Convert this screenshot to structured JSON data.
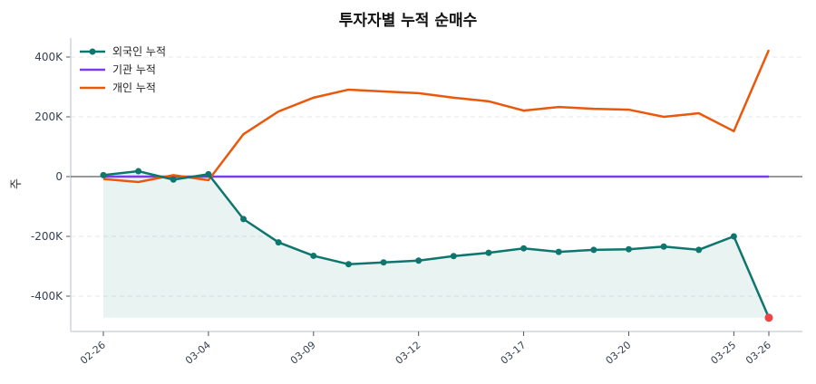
{
  "chart_data": {
    "type": "line",
    "title": "투자자별 누적 순매수",
    "ylabel": "주",
    "xlabel": "",
    "ylim": [
      -500000,
      470000
    ],
    "yticks": [
      -400000,
      -200000,
      0,
      200000,
      400000
    ],
    "ytick_labels": [
      "-400K",
      "-200K",
      "0",
      "200K",
      "400K"
    ],
    "x": [
      "02-26",
      "02-27",
      "02-28",
      "03-04",
      "03-05",
      "03-06",
      "03-09",
      "03-10",
      "03-11",
      "03-12",
      "03-13",
      "03-16",
      "03-17",
      "03-18",
      "03-19",
      "03-20",
      "03-23",
      "03-24",
      "03-25",
      "03-26"
    ],
    "xtick_indices": [
      0,
      3,
      6,
      9,
      12,
      15,
      18,
      19
    ],
    "xtick_labels": [
      "02-26",
      "03-04",
      "03-09",
      "03-12",
      "03-17",
      "03-20",
      "03-25",
      "03-26"
    ],
    "grid": "horizontal dashed",
    "legend": "top-left",
    "series": [
      {
        "name": "외국인 누적",
        "color": "#0f766e",
        "markers": true,
        "fill": true,
        "values": [
          5000,
          18000,
          -10000,
          8000,
          -142000,
          -220000,
          -265000,
          -293000,
          -287000,
          -281000,
          -266000,
          -255000,
          -240000,
          -252000,
          -245000,
          -243000,
          -234000,
          -245000,
          -200000,
          -472000
        ]
      },
      {
        "name": "기관 누적",
        "color": "#7c3aed",
        "markers": false,
        "values": [
          0,
          0,
          0,
          0,
          0,
          0,
          0,
          0,
          0,
          0,
          0,
          0,
          0,
          0,
          0,
          0,
          0,
          0,
          0,
          0
        ]
      },
      {
        "name": "개인 누적",
        "color": "#ea580c",
        "markers": false,
        "values": [
          -8000,
          -18000,
          5000,
          -12000,
          142000,
          218000,
          264000,
          291000,
          285000,
          279000,
          264000,
          252000,
          221000,
          233000,
          227000,
          224000,
          200000,
          212000,
          152000,
          424000
        ]
      }
    ],
    "highlight_last_point_color": "#ef4444"
  }
}
